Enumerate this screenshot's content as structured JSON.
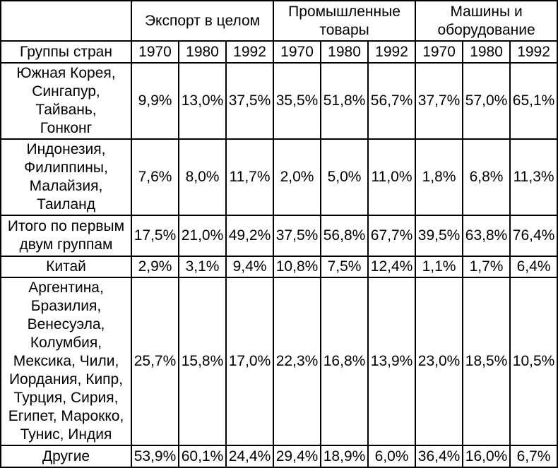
{
  "table": {
    "corner_label": "",
    "row_header_label": "Группы стран",
    "col_groups": [
      {
        "label": "Экспорт в целом"
      },
      {
        "label": "Промышленные\nтовары"
      },
      {
        "label": "Машины и\nоборудование"
      }
    ],
    "years": [
      "1970",
      "1980",
      "1992",
      "1970",
      "1980",
      "1992",
      "1970",
      "1980",
      "1992"
    ],
    "rows": [
      {
        "label": "Южная Корея,\nСингапур,\nТайвань,\nГонконг",
        "values": [
          "9,9%",
          "13,0%",
          "37,5%",
          "35,5%",
          "51,8%",
          "56,7%",
          "37,7%",
          "57,0%",
          "65,1%"
        ]
      },
      {
        "label": "Индонезия,\nФилиппины,\nМалайзия,\nТаиланд",
        "values": [
          "7,6%",
          "8,0%",
          "11,7%",
          "2,0%",
          "5,0%",
          "11,0%",
          "1,8%",
          "6,8%",
          "11,3%"
        ]
      },
      {
        "label": "Итого по первым\nдвум группам",
        "values": [
          "17,5%",
          "21,0%",
          "49,2%",
          "37,5%",
          "56,8%",
          "67,7%",
          "39,5%",
          "63,8%",
          "76,4%"
        ]
      },
      {
        "label": "Китай",
        "values": [
          "2,9%",
          "3,1%",
          "9,4%",
          "10,8%",
          "7,5%",
          "12,4%",
          "1,1%",
          "1,7%",
          "6,4%"
        ]
      },
      {
        "label": "Аргентина,\nБразилия,\nВенесуэла,\nКолумбия,\nМексика, Чили,\nИордания, Кипр,\nТурция, Сирия,\nЕгипет, Марокко,\nТунис, Индия",
        "values": [
          "25,7%",
          "15,8%",
          "17,0%",
          "22,3%",
          "16,8%",
          "13,9%",
          "23,0%",
          "18,5%",
          "10,5%"
        ]
      },
      {
        "label": "Другие",
        "values": [
          "53,9%",
          "60,1%",
          "24,4%",
          "29,4%",
          "18,9%",
          "6,0%",
          "36,4%",
          "16,0%",
          "6,7%"
        ]
      }
    ],
    "colors": {
      "border": "#000000",
      "background": "#ffffff",
      "text": "#000000"
    }
  }
}
